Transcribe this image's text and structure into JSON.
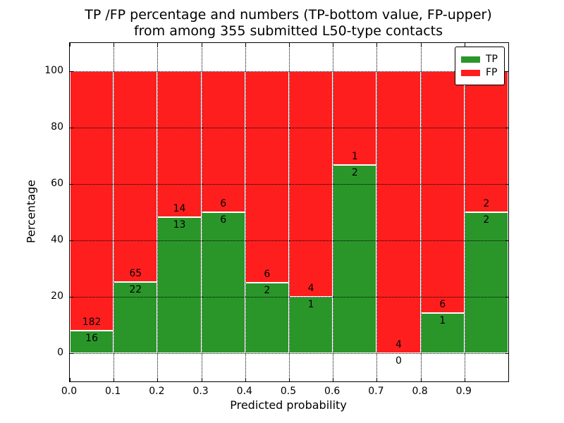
{
  "chart_data": {
    "type": "bar",
    "variant": "stacked-percentage",
    "title_line1": "TP /FP percentage and numbers (TP-bottom value, FP-upper)",
    "title_line2": "from among 355 submitted L50-type contacts",
    "xlabel": "Predicted probability",
    "ylabel": "Percentage",
    "x_tick_labels": [
      "0.0",
      "0.1",
      "0.2",
      "0.3",
      "0.4",
      "0.5",
      "0.6",
      "0.7",
      "0.8",
      "0.9"
    ],
    "y_ticks": [
      0,
      20,
      40,
      60,
      80,
      100
    ],
    "ylim": [
      -10,
      110
    ],
    "bin_width": 0.1,
    "categories": [
      "0.0-0.1",
      "0.1-0.2",
      "0.2-0.3",
      "0.3-0.4",
      "0.4-0.5",
      "0.5-0.6",
      "0.6-0.7",
      "0.7-0.8",
      "0.8-0.9",
      "0.9-1.0"
    ],
    "series": [
      {
        "name": "TP",
        "color": "#2a962a",
        "counts": [
          16,
          22,
          13,
          6,
          2,
          1,
          2,
          0,
          1,
          2
        ]
      },
      {
        "name": "FP",
        "color": "#ff1e1e",
        "counts": [
          182,
          65,
          14,
          6,
          6,
          4,
          1,
          4,
          6,
          2
        ]
      }
    ],
    "grid": true,
    "legend_position": "upper right"
  }
}
